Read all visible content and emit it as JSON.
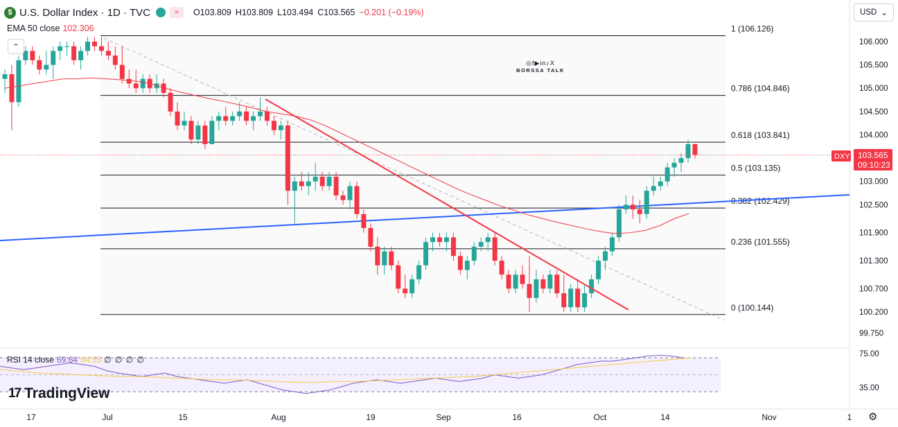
{
  "header": {
    "symbol_icon": "$",
    "title": "U.S. Dollar Index · 1D · TVC",
    "market_status_icon": "≈",
    "open": "O103.809",
    "high": "H103.809",
    "low": "L103.494",
    "close": "C103.565",
    "change": "−0.201 (−0.19%)"
  },
  "indicators": {
    "ema_label": "EMA 50 close",
    "ema_value": "102.306",
    "rsi_label": "RSI 14 close",
    "rsi_value": "69.64",
    "rsi_ma_value": "64.55",
    "rsi_extra": "∅ ∅ ∅ ∅"
  },
  "controls": {
    "currency": "USD",
    "collapse_icon": "⌃"
  },
  "price_label": {
    "symbol": "DXY",
    "price": "103.565",
    "countdown": "09:10:23"
  },
  "watermark": {
    "social": "◎f▶in♪X",
    "brand": "BORSSA TALK"
  },
  "branding": {
    "logo_mark": "17",
    "name": "TradingView"
  },
  "colors": {
    "up": "#26a69a",
    "down": "#f23645",
    "ema": "#f23645",
    "rsi": "#7e57c2",
    "rsi_ma": "#f7c948",
    "trend_blue": "#2962ff",
    "trend_red": "#f23645",
    "fib": "#131722"
  },
  "chart_data": {
    "type": "candlestick",
    "price_axis": [
      "106.000",
      "105.500",
      "105.000",
      "104.500",
      "104.000",
      "103.000",
      "102.500",
      "101.900",
      "101.300",
      "100.700",
      "100.200",
      "99.750"
    ],
    "time_axis": [
      "17",
      "Jul",
      "15",
      "Aug",
      "19",
      "Sep",
      "16",
      "Oct",
      "14",
      "Nov",
      "1"
    ],
    "fib_levels": [
      {
        "label": "1 (106.126)",
        "value": 106.126
      },
      {
        "label": "0.786 (104.846)",
        "value": 104.846
      },
      {
        "label": "0.618 (103.841)",
        "value": 103.841
      },
      {
        "label": "0.5 (103.135)",
        "value": 103.135
      },
      {
        "label": "0.382 (102.429)",
        "value": 102.429
      },
      {
        "label": "0.236 (101.555)",
        "value": 101.555
      },
      {
        "label": "0 (100.144)",
        "value": 100.144
      }
    ],
    "rsi_axis": [
      "75.00",
      "35.00"
    ],
    "candles": [
      [
        105.2,
        105.4,
        104.9,
        105.3
      ],
      [
        105.3,
        105.5,
        104.1,
        104.7
      ],
      [
        104.7,
        105.7,
        104.6,
        105.6
      ],
      [
        105.6,
        105.9,
        105.5,
        105.8
      ],
      [
        105.8,
        105.9,
        105.5,
        105.6
      ],
      [
        105.6,
        105.7,
        105.3,
        105.4
      ],
      [
        105.4,
        105.8,
        105.3,
        105.5
      ],
      [
        105.5,
        105.9,
        105.2,
        105.8
      ],
      [
        105.8,
        106.0,
        105.6,
        105.9
      ],
      [
        105.9,
        106.0,
        105.7,
        105.9
      ],
      [
        105.9,
        106.0,
        105.5,
        105.6
      ],
      [
        105.6,
        105.9,
        105.4,
        105.8
      ],
      [
        105.8,
        106.1,
        105.7,
        106.0
      ],
      [
        106.0,
        106.1,
        105.8,
        105.9
      ],
      [
        105.9,
        106.1,
        105.7,
        105.8
      ],
      [
        105.8,
        106.0,
        105.6,
        105.7
      ],
      [
        105.7,
        105.9,
        105.4,
        105.5
      ],
      [
        105.5,
        105.9,
        105.1,
        105.2
      ],
      [
        105.2,
        105.4,
        105.0,
        105.1
      ],
      [
        105.1,
        105.4,
        104.9,
        105.0
      ],
      [
        105.0,
        105.3,
        104.9,
        105.2
      ],
      [
        105.2,
        105.3,
        104.9,
        105.0
      ],
      [
        105.0,
        105.3,
        104.9,
        105.1
      ],
      [
        105.1,
        105.2,
        104.8,
        104.9
      ],
      [
        104.9,
        105.0,
        104.4,
        104.5
      ],
      [
        104.5,
        104.7,
        104.1,
        104.2
      ],
      [
        104.2,
        104.5,
        104.1,
        104.3
      ],
      [
        104.3,
        104.4,
        103.8,
        103.9
      ],
      [
        103.9,
        104.3,
        103.8,
        104.2
      ],
      [
        104.2,
        104.3,
        103.7,
        103.8
      ],
      [
        103.8,
        104.4,
        103.8,
        104.3
      ],
      [
        104.3,
        104.5,
        104.1,
        104.4
      ],
      [
        104.4,
        104.6,
        104.2,
        104.3
      ],
      [
        104.3,
        104.5,
        104.2,
        104.4
      ],
      [
        104.4,
        104.7,
        104.3,
        104.5
      ],
      [
        104.5,
        104.6,
        104.2,
        104.3
      ],
      [
        104.3,
        104.5,
        104.1,
        104.4
      ],
      [
        104.4,
        104.8,
        104.3,
        104.5
      ],
      [
        104.5,
        104.6,
        104.2,
        104.3
      ],
      [
        104.3,
        104.4,
        104.0,
        104.1
      ],
      [
        104.1,
        104.3,
        103.9,
        104.2
      ],
      [
        104.2,
        104.3,
        102.5,
        102.8
      ],
      [
        102.8,
        103.1,
        102.1,
        103.0
      ],
      [
        103.0,
        103.2,
        102.8,
        102.9
      ],
      [
        102.9,
        103.2,
        102.7,
        103.0
      ],
      [
        103.0,
        103.4,
        102.8,
        103.1
      ],
      [
        103.1,
        103.2,
        102.8,
        102.9
      ],
      [
        102.9,
        103.2,
        102.8,
        103.1
      ],
      [
        103.1,
        103.2,
        102.6,
        102.7
      ],
      [
        102.7,
        102.8,
        102.5,
        102.6
      ],
      [
        102.6,
        103.0,
        102.4,
        102.9
      ],
      [
        102.9,
        103.0,
        102.2,
        102.3
      ],
      [
        102.3,
        102.4,
        101.9,
        102.0
      ],
      [
        102.0,
        102.1,
        101.5,
        101.6
      ],
      [
        101.6,
        101.8,
        101.0,
        101.2
      ],
      [
        101.2,
        101.6,
        101.0,
        101.5
      ],
      [
        101.5,
        101.6,
        101.1,
        101.2
      ],
      [
        101.2,
        101.3,
        100.6,
        100.7
      ],
      [
        100.7,
        101.0,
        100.5,
        100.6
      ],
      [
        100.6,
        101.0,
        100.5,
        100.9
      ],
      [
        100.9,
        101.3,
        100.8,
        101.2
      ],
      [
        101.2,
        101.8,
        101.1,
        101.7
      ],
      [
        101.7,
        101.9,
        101.5,
        101.8
      ],
      [
        101.8,
        101.9,
        101.6,
        101.7
      ],
      [
        101.7,
        101.9,
        101.5,
        101.8
      ],
      [
        101.8,
        101.9,
        101.3,
        101.4
      ],
      [
        101.4,
        101.5,
        101.0,
        101.1
      ],
      [
        101.1,
        101.4,
        100.9,
        101.3
      ],
      [
        101.3,
        101.7,
        101.2,
        101.6
      ],
      [
        101.6,
        101.8,
        101.5,
        101.7
      ],
      [
        101.7,
        101.9,
        101.5,
        101.8
      ],
      [
        101.8,
        101.9,
        101.2,
        101.3
      ],
      [
        101.3,
        101.4,
        100.9,
        101.0
      ],
      [
        101.0,
        101.1,
        100.6,
        100.7
      ],
      [
        100.7,
        101.1,
        100.6,
        101.0
      ],
      [
        101.0,
        101.2,
        100.7,
        100.8
      ],
      [
        100.8,
        101.4,
        100.2,
        100.5
      ],
      [
        100.5,
        101.1,
        100.4,
        100.9
      ],
      [
        100.9,
        101.0,
        100.6,
        100.7
      ],
      [
        100.7,
        101.1,
        100.6,
        101.0
      ],
      [
        101.0,
        101.1,
        100.5,
        100.6
      ],
      [
        100.6,
        101.0,
        100.2,
        100.3
      ],
      [
        100.3,
        100.8,
        100.2,
        100.7
      ],
      [
        100.7,
        100.9,
        100.2,
        100.3
      ],
      [
        100.3,
        100.8,
        100.2,
        100.6
      ],
      [
        100.6,
        101.0,
        100.5,
        100.9
      ],
      [
        100.9,
        101.4,
        100.8,
        101.3
      ],
      [
        101.3,
        101.6,
        101.1,
        101.5
      ],
      [
        101.5,
        101.9,
        101.4,
        101.8
      ],
      [
        101.8,
        102.5,
        101.7,
        102.4
      ],
      [
        102.4,
        102.7,
        102.3,
        102.5
      ],
      [
        102.5,
        102.7,
        102.2,
        102.4
      ],
      [
        102.4,
        102.6,
        102.1,
        102.3
      ],
      [
        102.3,
        102.9,
        102.2,
        102.8
      ],
      [
        102.8,
        103.1,
        102.7,
        102.9
      ],
      [
        102.9,
        103.1,
        102.8,
        103.0
      ],
      [
        103.0,
        103.4,
        102.9,
        103.3
      ],
      [
        103.3,
        103.5,
        103.1,
        103.4
      ],
      [
        103.4,
        103.6,
        103.2,
        103.5
      ],
      [
        103.5,
        103.9,
        103.4,
        103.8
      ],
      [
        103.8,
        103.81,
        103.49,
        103.57
      ]
    ],
    "ema": [
      105.0,
      105.05,
      105.1,
      105.15,
      105.2,
      105.2,
      105.22,
      105.2,
      105.18,
      105.15,
      105.1,
      105.0,
      104.92,
      104.85,
      104.78,
      104.72,
      104.65,
      104.58,
      104.5,
      104.45,
      104.4,
      104.32,
      104.2,
      104.05,
      103.9,
      103.75,
      103.6,
      103.45,
      103.3,
      103.15,
      103.0,
      102.85,
      102.72,
      102.6,
      102.48,
      102.38,
      102.28,
      102.2,
      102.12,
      102.05,
      101.98,
      101.92,
      101.88,
      101.9,
      101.95,
      102.05,
      102.2,
      102.31
    ],
    "rsi": [
      60,
      58,
      56,
      58,
      60,
      62,
      64,
      62,
      60,
      55,
      52,
      50,
      48,
      50,
      52,
      48,
      46,
      44,
      42,
      40,
      42,
      44,
      40,
      36,
      32,
      30,
      28,
      30,
      32,
      36,
      40,
      42,
      44,
      42,
      40,
      42,
      44,
      46,
      44,
      42,
      44,
      46,
      50,
      48,
      46,
      48,
      50,
      54,
      58,
      62,
      64,
      66,
      66,
      68,
      70,
      72,
      73,
      72,
      70
    ]
  }
}
